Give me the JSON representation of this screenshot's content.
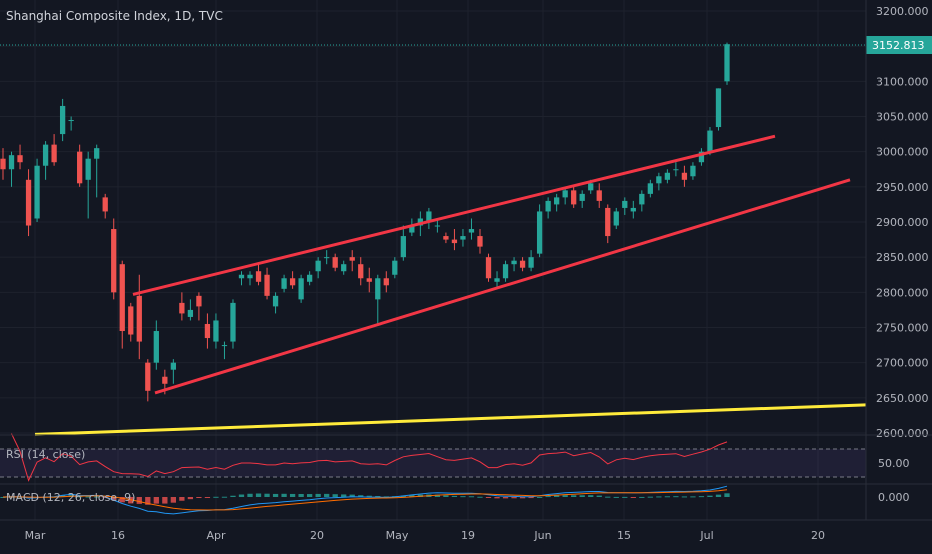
{
  "header": {
    "title": "Shanghai Composite Index, 1D, TVC"
  },
  "colors": {
    "background": "#131722",
    "up": "#26a69a",
    "down": "#ef5350",
    "channel": "#f23645",
    "support": "#ffeb3b",
    "rsi": "#f23645",
    "macd": "#2196f3",
    "signal": "#ff6d00",
    "text": "#b2b5be",
    "price_label_bg": "#26a69a",
    "grid": "#1e222d"
  },
  "price_axis": {
    "ticks": [
      "3200.000",
      "3150.000",
      "3100.000",
      "3050.000",
      "3000.000",
      "2950.000",
      "2900.000",
      "2850.000",
      "2800.000",
      "2750.000",
      "2700.000",
      "2650.000",
      "2600.000"
    ],
    "tick_values": [
      3200,
      3150,
      3100,
      3050,
      3000,
      2950,
      2900,
      2850,
      2800,
      2750,
      2700,
      2650,
      2600
    ],
    "last_price": "3152.813"
  },
  "time_axis": {
    "labels": [
      "Mar",
      "16",
      "Apr",
      "20",
      "May",
      "19",
      "Jun",
      "15",
      "Jul",
      "20"
    ]
  },
  "rsi": {
    "label": "RSI (14, close)",
    "tick": "50.00",
    "levels": [
      30,
      70
    ]
  },
  "macd": {
    "label": "MACD (12, 26, close, 9)",
    "tick": "0.000"
  },
  "chart_data": {
    "type": "candlestick",
    "title": "Shanghai Composite Index, 1D, TVC",
    "ylim": [
      2600,
      3200
    ],
    "candles": [
      [
        2990,
        3005,
        2960,
        2975
      ],
      [
        2975,
        3000,
        2950,
        2995
      ],
      [
        2995,
        3010,
        2975,
        2985
      ],
      [
        2960,
        2975,
        2880,
        2895
      ],
      [
        2905,
        2990,
        2900,
        2980
      ],
      [
        2980,
        3015,
        2960,
        3010
      ],
      [
        3010,
        3025,
        2980,
        2985
      ],
      [
        3025,
        3075,
        3015,
        3065
      ],
      [
        3045,
        3050,
        3030,
        3045
      ],
      [
        3000,
        3010,
        2950,
        2955
      ],
      [
        2960,
        3000,
        2905,
        2990
      ],
      [
        2990,
        3010,
        2935,
        3005
      ],
      [
        2935,
        2940,
        2905,
        2915
      ],
      [
        2890,
        2905,
        2790,
        2800
      ],
      [
        2840,
        2845,
        2720,
        2745
      ],
      [
        2780,
        2785,
        2730,
        2740
      ],
      [
        2795,
        2825,
        2705,
        2730
      ],
      [
        2700,
        2705,
        2645,
        2660
      ],
      [
        2700,
        2760,
        2690,
        2745
      ],
      [
        2680,
        2690,
        2655,
        2670
      ],
      [
        2690,
        2705,
        2670,
        2700
      ],
      [
        2785,
        2800,
        2760,
        2770
      ],
      [
        2765,
        2790,
        2760,
        2775
      ],
      [
        2795,
        2800,
        2760,
        2780
      ],
      [
        2755,
        2770,
        2720,
        2735
      ],
      [
        2730,
        2770,
        2720,
        2760
      ],
      [
        2725,
        2730,
        2705,
        2725
      ],
      [
        2730,
        2790,
        2720,
        2785
      ],
      [
        2820,
        2830,
        2810,
        2825
      ],
      [
        2820,
        2830,
        2810,
        2825
      ],
      [
        2830,
        2840,
        2810,
        2815
      ],
      [
        2825,
        2835,
        2790,
        2795
      ],
      [
        2780,
        2800,
        2770,
        2795
      ],
      [
        2805,
        2825,
        2800,
        2820
      ],
      [
        2820,
        2830,
        2805,
        2810
      ],
      [
        2790,
        2825,
        2785,
        2820
      ],
      [
        2815,
        2830,
        2810,
        2825
      ],
      [
        2830,
        2850,
        2820,
        2845
      ],
      [
        2850,
        2860,
        2840,
        2850
      ],
      [
        2850,
        2855,
        2830,
        2835
      ],
      [
        2830,
        2845,
        2825,
        2840
      ],
      [
        2850,
        2860,
        2830,
        2845
      ],
      [
        2840,
        2850,
        2810,
        2820
      ],
      [
        2820,
        2835,
        2800,
        2815
      ],
      [
        2790,
        2825,
        2755,
        2820
      ],
      [
        2820,
        2830,
        2800,
        2810
      ],
      [
        2825,
        2850,
        2820,
        2845
      ],
      [
        2850,
        2895,
        2845,
        2880
      ],
      [
        2885,
        2905,
        2880,
        2895
      ],
      [
        2895,
        2915,
        2880,
        2905
      ],
      [
        2900,
        2920,
        2890,
        2915
      ],
      [
        2895,
        2905,
        2885,
        2895
      ],
      [
        2880,
        2885,
        2870,
        2875
      ],
      [
        2875,
        2890,
        2860,
        2870
      ],
      [
        2875,
        2890,
        2865,
        2880
      ],
      [
        2885,
        2905,
        2875,
        2890
      ],
      [
        2880,
        2890,
        2855,
        2865
      ],
      [
        2850,
        2855,
        2815,
        2820
      ],
      [
        2815,
        2830,
        2805,
        2820
      ],
      [
        2820,
        2845,
        2815,
        2840
      ],
      [
        2840,
        2850,
        2830,
        2845
      ],
      [
        2845,
        2850,
        2830,
        2835
      ],
      [
        2835,
        2860,
        2830,
        2850
      ],
      [
        2855,
        2925,
        2850,
        2915
      ],
      [
        2915,
        2935,
        2905,
        2930
      ],
      [
        2925,
        2940,
        2915,
        2935
      ],
      [
        2935,
        2950,
        2925,
        2945
      ],
      [
        2945,
        2950,
        2920,
        2925
      ],
      [
        2930,
        2945,
        2920,
        2940
      ],
      [
        2945,
        2960,
        2940,
        2955
      ],
      [
        2945,
        2955,
        2920,
        2930
      ],
      [
        2920,
        2925,
        2870,
        2880
      ],
      [
        2895,
        2920,
        2890,
        2915
      ],
      [
        2920,
        2935,
        2910,
        2930
      ],
      [
        2915,
        2930,
        2905,
        2920
      ],
      [
        2925,
        2945,
        2915,
        2940
      ],
      [
        2940,
        2960,
        2935,
        2955
      ],
      [
        2955,
        2970,
        2945,
        2965
      ],
      [
        2960,
        2975,
        2955,
        2970
      ],
      [
        2975,
        2985,
        2965,
        2975
      ],
      [
        2970,
        2980,
        2950,
        2960
      ],
      [
        2965,
        2985,
        2960,
        2980
      ],
      [
        2985,
        3005,
        2980,
        3000
      ],
      [
        3000,
        3035,
        2995,
        3030
      ],
      [
        3035,
        3090,
        3030,
        3090
      ],
      [
        3100,
        3155,
        3095,
        3152.813
      ]
    ],
    "channel_upper": [
      [
        0.0,
        2797
      ],
      [
        1.0,
        3022
      ]
    ],
    "channel_lower": [
      [
        0.0,
        2657
      ],
      [
        1.0,
        2960
      ]
    ],
    "support_line": [
      [
        0.0,
        2598
      ],
      [
        1.0,
        2640
      ]
    ]
  }
}
